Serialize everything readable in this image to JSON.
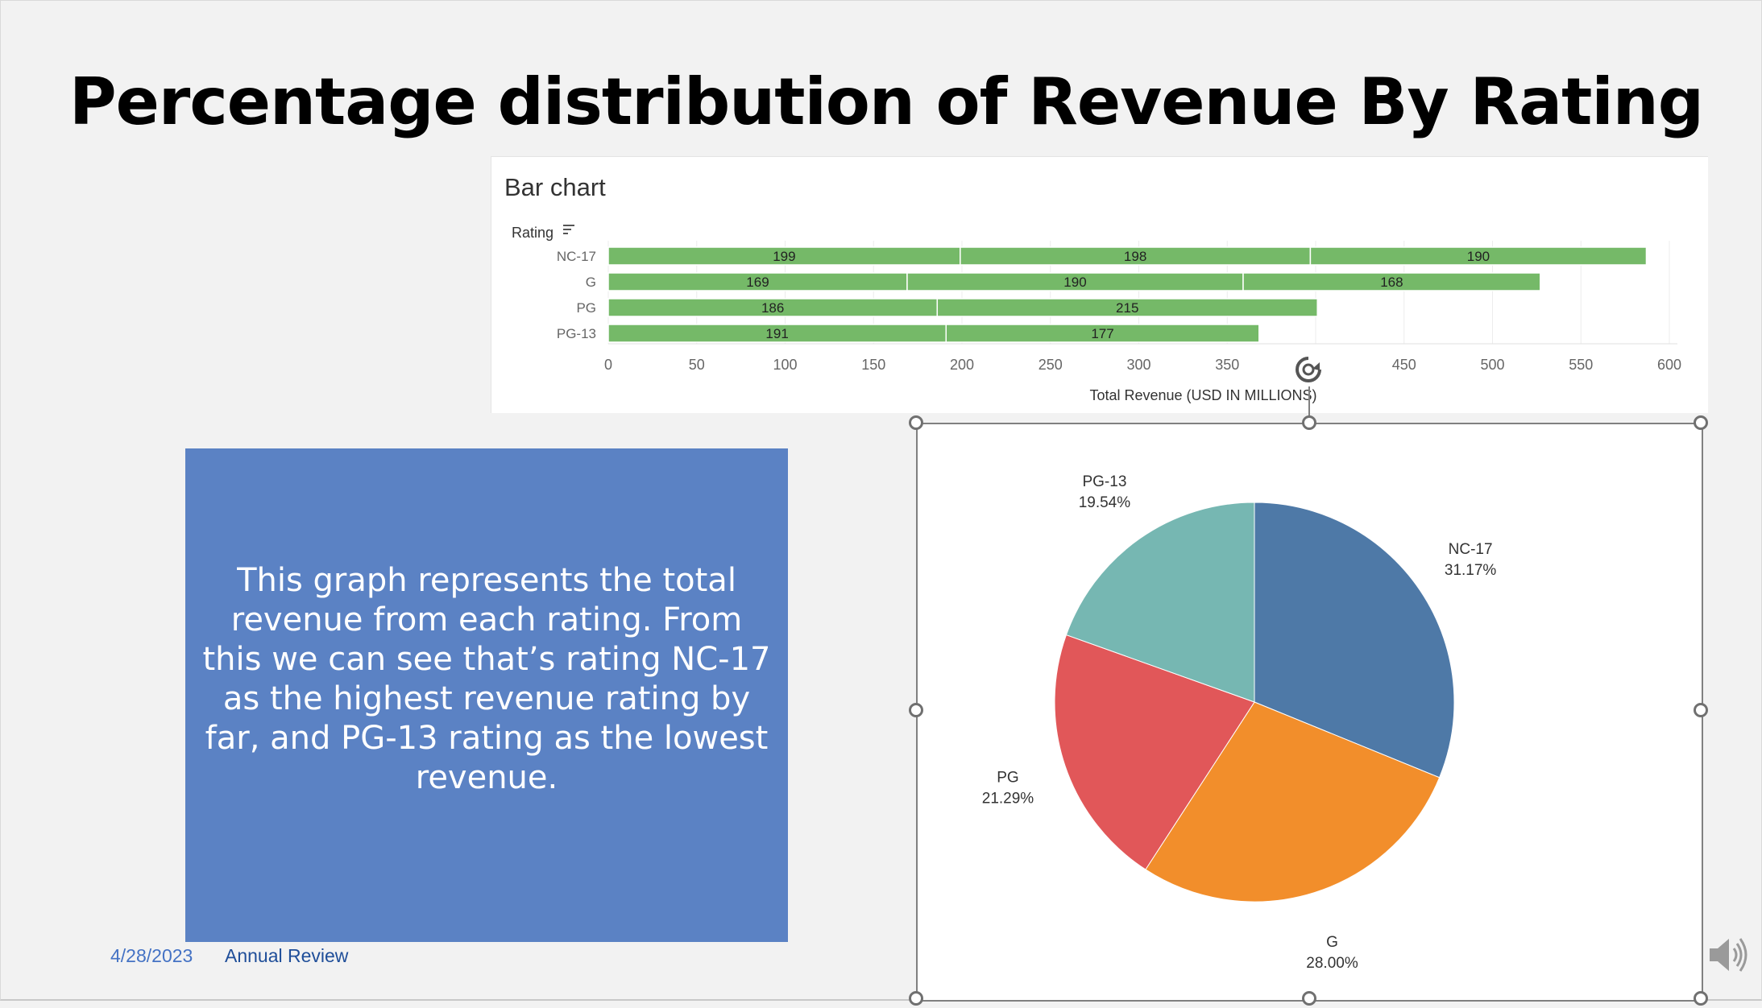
{
  "slide": {
    "title": "Percentage distribution of Revenue By Rating",
    "description": "This graph represents the total revenue from each rating. From this we can see that’s rating NC-17 as the highest revenue rating by far, and PG-13 rating as the lowest revenue.",
    "footer_date": "4/28/2023",
    "footer_label": "Annual Review"
  },
  "colors": {
    "bar": "#75b968",
    "nc17": "#4e79a7",
    "g": "#f28e2b",
    "pg": "#e15759",
    "pg13": "#76b7b2",
    "textbox": "#5b82c4"
  },
  "chart_data": [
    {
      "type": "bar",
      "orientation": "horizontal",
      "stacked": true,
      "title": "Bar chart",
      "row_header": "Rating",
      "categories": [
        "NC-17",
        "G",
        "PG",
        "PG-13"
      ],
      "segments": [
        [
          199,
          198,
          190
        ],
        [
          169,
          190,
          168
        ],
        [
          186,
          215
        ],
        [
          191,
          177
        ]
      ],
      "xlabel": "Total Revenue (USD IN MILLIONS)",
      "xlim": [
        0,
        600
      ],
      "xticks": [
        0,
        50,
        100,
        150,
        200,
        250,
        300,
        350,
        400,
        450,
        500,
        550,
        600
      ],
      "xtick_labels": [
        "0",
        "50",
        "100",
        "150",
        "200",
        "250",
        "300",
        "350",
        "",
        "450",
        "500",
        "550",
        "600"
      ],
      "grid": true
    },
    {
      "type": "pie",
      "slices": [
        {
          "label": "NC-17",
          "value": 31.17,
          "display": "31.17%",
          "color": "#4e79a7"
        },
        {
          "label": "G",
          "value": 28.0,
          "display": "28.00%",
          "color": "#f28e2b"
        },
        {
          "label": "PG",
          "value": 21.29,
          "display": "21.29%",
          "color": "#e15759"
        },
        {
          "label": "PG-13",
          "value": 19.54,
          "display": "19.54%",
          "color": "#76b7b2"
        }
      ]
    }
  ]
}
